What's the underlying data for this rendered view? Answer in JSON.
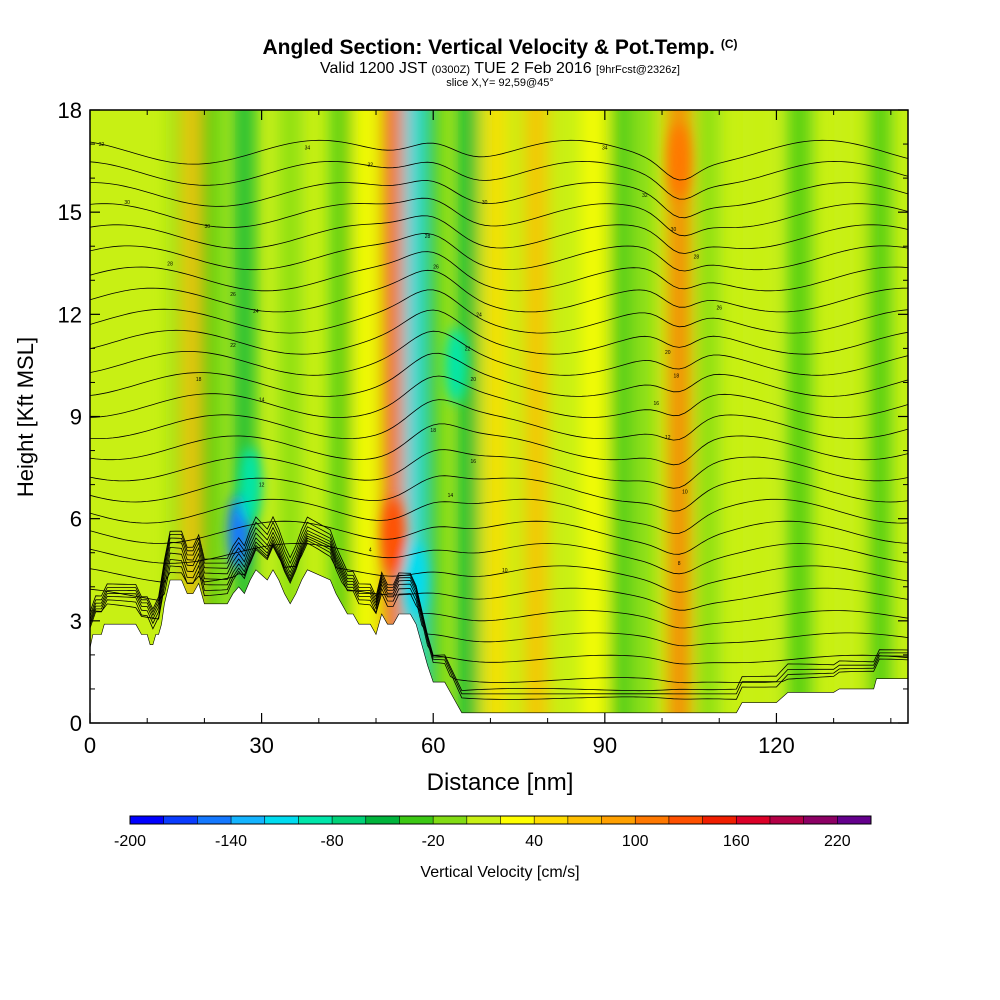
{
  "title": {
    "main": "Angled Section: Vertical Velocity & Pot.Temp.",
    "copyright": "(C)",
    "valid_prefix": "Valid 1200 JST",
    "valid_utc": "(0300Z)",
    "valid_date": "TUE 2 Feb 2016",
    "forecast": "[9hrFcst@2326z]",
    "slice": "slice X,Y= 92,59@45°"
  },
  "chart_data": {
    "type": "heatmap",
    "xlabel": "Distance [nm]",
    "ylabel": "Height [Kft MSL]",
    "xlim": [
      0,
      143
    ],
    "ylim": [
      0,
      18
    ],
    "x_ticks": [
      0,
      30,
      60,
      90,
      120
    ],
    "y_ticks": [
      0,
      3,
      6,
      9,
      12,
      15,
      18
    ],
    "colorbar": {
      "label": "Vertical Velocity [cm/s]",
      "tick_labels": [
        -200,
        -140,
        -80,
        -20,
        40,
        100,
        160,
        220
      ],
      "min": -200,
      "max": 240,
      "step": 20,
      "colors": [
        "#0000ff",
        "#0a3cff",
        "#1478ff",
        "#14b4ff",
        "#00dcf0",
        "#00e6aa",
        "#00d278",
        "#00b43c",
        "#3cc814",
        "#82dc14",
        "#c8f014",
        "#ffff00",
        "#ffdc00",
        "#ffbe00",
        "#ffa000",
        "#ff7800",
        "#ff5000",
        "#f01e00",
        "#dc0028",
        "#b40046",
        "#8c0064",
        "#64008c"
      ]
    },
    "columns": [
      {
        "x": 16,
        "value": -20
      },
      {
        "x": 18,
        "value": 60
      },
      {
        "x": 21,
        "value": -30
      },
      {
        "x": 27,
        "value": -60
      },
      {
        "x": 35,
        "value": -10
      },
      {
        "x": 44,
        "value": -30
      },
      {
        "x": 48,
        "value": 30
      },
      {
        "x": 53,
        "value": 120
      },
      {
        "x": 56.5,
        "value": -110
      },
      {
        "x": 60,
        "value": -30
      },
      {
        "x": 66,
        "value": -50
      },
      {
        "x": 71,
        "value": 50
      },
      {
        "x": 78,
        "value": 60
      },
      {
        "x": 88,
        "value": 20
      },
      {
        "x": 93,
        "value": -40
      },
      {
        "x": 97,
        "value": -10
      },
      {
        "x": 103,
        "value": 100
      },
      {
        "x": 108,
        "value": -20
      },
      {
        "x": 117,
        "value": 10
      },
      {
        "x": 124,
        "value": -40
      },
      {
        "x": 133,
        "value": 0
      },
      {
        "x": 138,
        "value": -30
      }
    ],
    "cores": [
      {
        "x": 26,
        "y": 5.6,
        "value": -150
      },
      {
        "x": 28,
        "y": 7.0,
        "value": -90
      },
      {
        "x": 57,
        "y": 4.2,
        "value": -110
      },
      {
        "x": 64,
        "y": 10.5,
        "value": -90
      },
      {
        "x": 53,
        "y": 5.5,
        "value": 120
      },
      {
        "x": 103,
        "y": 16.5,
        "value": 110
      }
    ],
    "terrain": [
      [
        0,
        2.2
      ],
      [
        0.5,
        2.6
      ],
      [
        2,
        2.6
      ],
      [
        2.5,
        2.9
      ],
      [
        8,
        2.9
      ],
      [
        9,
        2.6
      ],
      [
        10,
        2.6
      ],
      [
        10.5,
        2.3
      ],
      [
        11,
        2.3
      ],
      [
        11.5,
        2.6
      ],
      [
        12,
        2.6
      ],
      [
        12.5,
        2.9
      ],
      [
        13,
        3.5
      ],
      [
        14,
        4.2
      ],
      [
        16,
        4.2
      ],
      [
        17,
        3.8
      ],
      [
        18,
        3.8
      ],
      [
        19,
        4.1
      ],
      [
        20,
        3.5
      ],
      [
        20.5,
        3.5
      ],
      [
        21,
        3.5
      ],
      [
        24,
        3.5
      ],
      [
        25,
        3.8
      ],
      [
        26,
        4.0
      ],
      [
        27,
        3.8
      ],
      [
        28,
        4.2
      ],
      [
        29,
        4.5
      ],
      [
        31,
        4.2
      ],
      [
        32,
        4.5
      ],
      [
        33,
        4.2
      ],
      [
        34,
        3.8
      ],
      [
        35,
        3.5
      ],
      [
        36,
        3.8
      ],
      [
        37,
        4.2
      ],
      [
        38,
        4.5
      ],
      [
        42,
        4.2
      ],
      [
        43,
        3.8
      ],
      [
        44,
        3.5
      ],
      [
        45,
        3.2
      ],
      [
        46,
        3.2
      ],
      [
        47,
        2.9
      ],
      [
        49,
        2.9
      ],
      [
        50,
        2.6
      ],
      [
        51,
        3.2
      ],
      [
        52,
        2.9
      ],
      [
        53,
        2.9
      ],
      [
        54,
        3.2
      ],
      [
        56,
        3.2
      ],
      [
        57,
        2.9
      ],
      [
        58,
        2.3
      ],
      [
        59,
        1.7
      ],
      [
        60,
        1.2
      ],
      [
        62,
        1.2
      ],
      [
        63,
        0.9
      ],
      [
        64,
        0.6
      ],
      [
        65,
        0.3
      ],
      [
        113,
        0.3
      ],
      [
        114,
        0.6
      ],
      [
        120,
        0.6
      ],
      [
        122,
        0.9
      ],
      [
        130,
        0.9
      ],
      [
        131,
        1.0
      ],
      [
        137,
        1.0
      ],
      [
        137.5,
        1.3
      ],
      [
        143,
        1.3
      ]
    ],
    "isentropes": {
      "levels": [
        2,
        3,
        4,
        5,
        6,
        7,
        8,
        9,
        10,
        11,
        12,
        13,
        14,
        15,
        16,
        17,
        18,
        19,
        20,
        21,
        22,
        23,
        24,
        25,
        26,
        27,
        28,
        29,
        30
      ],
      "spacing_kft": 0.62,
      "baseline_kft": -0.6
    },
    "contour_labels": [
      {
        "x": 2,
        "y": 17.0,
        "text": "32"
      },
      {
        "x": 6.5,
        "y": 15.3,
        "text": "30"
      },
      {
        "x": 14,
        "y": 13.5,
        "text": "28"
      },
      {
        "x": 20.5,
        "y": 14.6,
        "text": "30"
      },
      {
        "x": 25,
        "y": 12.6,
        "text": "26"
      },
      {
        "x": 29,
        "y": 12.1,
        "text": "24"
      },
      {
        "x": 25,
        "y": 11.1,
        "text": "22"
      },
      {
        "x": 19,
        "y": 10.1,
        "text": "18"
      },
      {
        "x": 30,
        "y": 9.5,
        "text": "14"
      },
      {
        "x": 30,
        "y": 7.0,
        "text": "12"
      },
      {
        "x": 38,
        "y": 16.9,
        "text": "34"
      },
      {
        "x": 49,
        "y": 16.4,
        "text": "32"
      },
      {
        "x": 69,
        "y": 15.3,
        "text": "30"
      },
      {
        "x": 59,
        "y": 14.3,
        "text": "28"
      },
      {
        "x": 60.5,
        "y": 13.4,
        "text": "26"
      },
      {
        "x": 68,
        "y": 12.0,
        "text": "24"
      },
      {
        "x": 66,
        "y": 11.0,
        "text": "22"
      },
      {
        "x": 67,
        "y": 10.1,
        "text": "20"
      },
      {
        "x": 60,
        "y": 8.6,
        "text": "18"
      },
      {
        "x": 67,
        "y": 7.7,
        "text": "16"
      },
      {
        "x": 63,
        "y": 6.7,
        "text": "14"
      },
      {
        "x": 49,
        "y": 5.1,
        "text": "4"
      },
      {
        "x": 72.5,
        "y": 4.5,
        "text": "10"
      },
      {
        "x": 90,
        "y": 16.9,
        "text": "34"
      },
      {
        "x": 97,
        "y": 15.5,
        "text": "32"
      },
      {
        "x": 102,
        "y": 14.5,
        "text": "30"
      },
      {
        "x": 106,
        "y": 13.7,
        "text": "28"
      },
      {
        "x": 110,
        "y": 12.2,
        "text": "26"
      },
      {
        "x": 101,
        "y": 10.9,
        "text": "20"
      },
      {
        "x": 102.5,
        "y": 10.2,
        "text": "18"
      },
      {
        "x": 99,
        "y": 9.4,
        "text": "16"
      },
      {
        "x": 101,
        "y": 8.4,
        "text": "12"
      },
      {
        "x": 104,
        "y": 6.8,
        "text": "10"
      },
      {
        "x": 103,
        "y": 4.7,
        "text": "8"
      }
    ]
  }
}
